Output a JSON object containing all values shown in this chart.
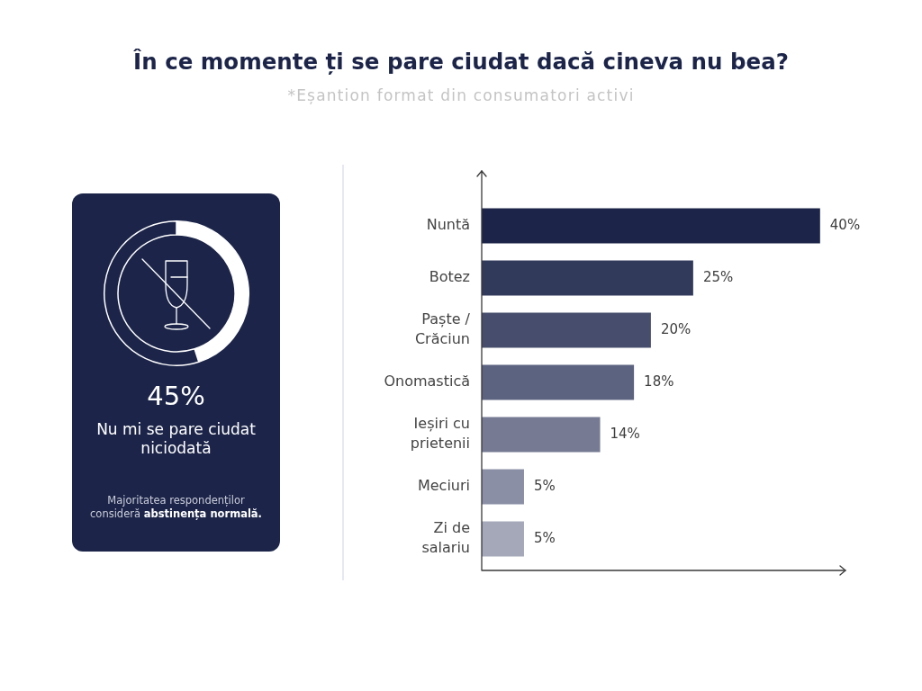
{
  "chart_data": [
    {
      "type": "donut",
      "categories": [
        null,
        null
      ],
      "values": [
        45,
        55
      ],
      "colors": [
        "#ffffff",
        "#1c2549"
      ],
      "annotations": [
        "45%",
        "Nu mi se pare ciudat niciodată",
        "Majoritatea respondenților consideră",
        "abstinența normală."
      ]
    },
    {
      "type": "bar",
      "title": "În ce momente ți se pare ciudat dacă cineva nu bea?",
      "subtitle": "*Eșantion format din consumatori activi",
      "orientation": "horizontal",
      "categories": [
        "Nuntă",
        "Botez",
        "Paște / Crăciun",
        "Onomastică",
        "Ieșiri cu prietenii",
        "Meciuri",
        "Zi de salariu"
      ],
      "values": [
        40,
        25,
        20,
        18,
        14,
        5,
        5
      ],
      "colors": [
        "#1c2549",
        "#323a5c",
        "#474e6d",
        "#5c6380",
        "#767b93",
        "#8a8fa5",
        "#a4a8b9"
      ],
      "value_labels": [
        "40%",
        "25%",
        "20%",
        "18%",
        "14%",
        "5%",
        "5%"
      ],
      "xlim": [
        0,
        43
      ],
      "tick_labels": "y"
    }
  ]
}
